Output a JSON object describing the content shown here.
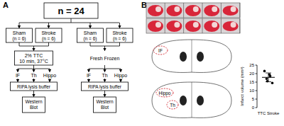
{
  "panel_a": {
    "label": "A",
    "root": "n = 24",
    "branches": [
      {
        "groups": [
          {
            "name": "Sham",
            "n": "(n = 6)"
          },
          {
            "name": "Stroke",
            "n": "(n = 6)"
          }
        ],
        "treatment": [
          "2% TTC",
          "10 min, 37°C"
        ],
        "treatment_boxed": true,
        "regions": [
          "IF",
          "Th",
          "Hippo"
        ],
        "lysis": "RIPA lysis buffer",
        "assay": [
          "Western",
          "Blot"
        ]
      },
      {
        "groups": [
          {
            "name": "Sham",
            "n": "(n = 6)"
          },
          {
            "name": "Stroke",
            "n": "(n = 6)"
          }
        ],
        "treatment": [
          "Fresh Frozen"
        ],
        "treatment_boxed": false,
        "regions": [
          "IF",
          "Th",
          "Hippo"
        ],
        "lysis": "RIPA lysis buffer",
        "assay": [
          "Western",
          "Blot"
        ]
      }
    ]
  },
  "panel_b": {
    "label": "B",
    "atlas_labels": {
      "top": [
        "IF"
      ],
      "bottom": [
        "Hippo",
        "Th"
      ]
    }
  },
  "chart_data": {
    "type": "scatter",
    "categories": [
      "TTC Stroke"
    ],
    "values": [
      [
        21.5,
        19.5,
        18.5,
        17,
        15.5,
        14.5
      ]
    ],
    "mean": [
      17.8
    ],
    "sd": [
      2.6
    ],
    "ylabel": "Infarct volume (mm³)",
    "ylim": [
      0,
      25
    ],
    "yticks": [
      0,
      5,
      10,
      15,
      20,
      25
    ],
    "color": "#000000",
    "marker": "circle"
  }
}
